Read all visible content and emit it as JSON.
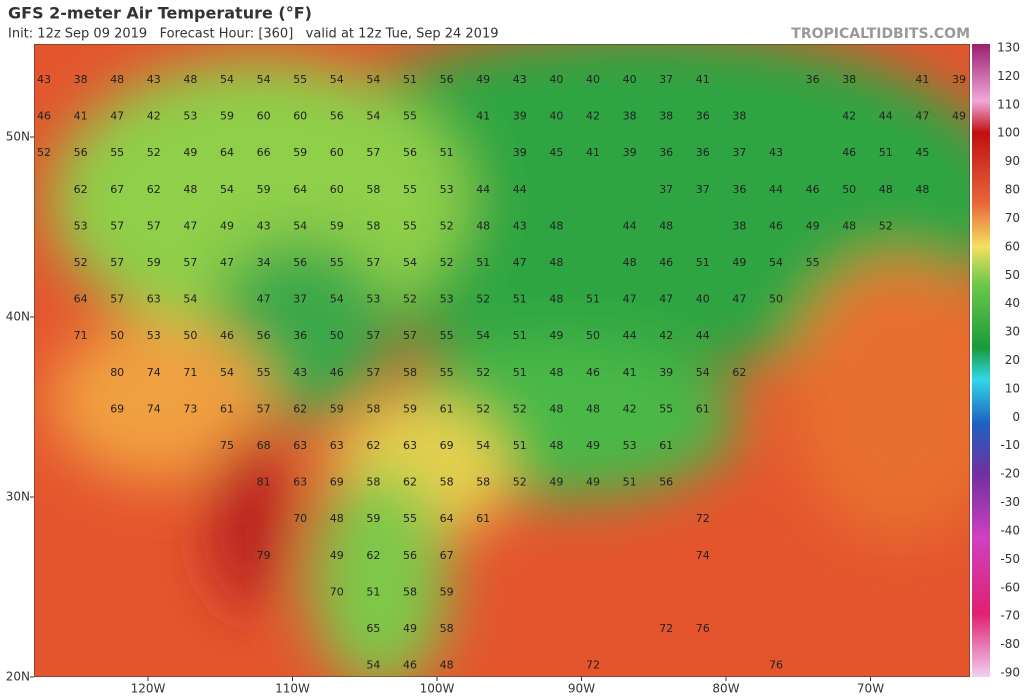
{
  "header": {
    "title": "GFS 2-meter Air Temperature (°F)",
    "subtitle": "Init: 12z Sep 09 2019   Forecast Hour: [360]   valid at 12z Tue, Sep 24 2019",
    "site": "TROPICALTIDBITS.COM"
  },
  "lat_labels": [
    "50N",
    "40N",
    "30N",
    "20N"
  ],
  "lon_labels": [
    "120W",
    "110W",
    "100W",
    "90W",
    "80W",
    "70W"
  ],
  "legend": {
    "labels": [
      130,
      120,
      110,
      100,
      90,
      80,
      70,
      60,
      50,
      40,
      30,
      20,
      10,
      0,
      -10,
      -20,
      -30,
      -40,
      -50,
      -60,
      -70,
      -80,
      -90
    ]
  },
  "grid": {
    "rows": [
      [
        43,
        38,
        48,
        43,
        48,
        54,
        54,
        55,
        54,
        54,
        51,
        56,
        49,
        43,
        40,
        40,
        40,
        37,
        41,
        null,
        null,
        36,
        38,
        null,
        41,
        39
      ],
      [
        46,
        41,
        47,
        42,
        53,
        59,
        60,
        60,
        56,
        54,
        55,
        null,
        41,
        39,
        40,
        42,
        38,
        38,
        36,
        38,
        null,
        null,
        42,
        44,
        47,
        49
      ],
      [
        52,
        56,
        55,
        52,
        49,
        64,
        66,
        59,
        60,
        57,
        56,
        51,
        null,
        39,
        45,
        41,
        39,
        36,
        36,
        37,
        43,
        null,
        46,
        51,
        45
      ],
      [
        null,
        62,
        67,
        62,
        48,
        54,
        59,
        64,
        60,
        58,
        55,
        53,
        44,
        44,
        null,
        null,
        null,
        37,
        37,
        36,
        44,
        46,
        50,
        48,
        48
      ],
      [
        null,
        53,
        57,
        57,
        47,
        49,
        43,
        54,
        59,
        58,
        55,
        52,
        48,
        43,
        48,
        null,
        44,
        48,
        null,
        38,
        46,
        49,
        48,
        52
      ],
      [
        null,
        52,
        57,
        59,
        57,
        47,
        34,
        56,
        55,
        57,
        54,
        52,
        51,
        47,
        48,
        null,
        48,
        46,
        51,
        49,
        54,
        55
      ],
      [
        null,
        64,
        57,
        63,
        54,
        null,
        47,
        37,
        54,
        53,
        52,
        53,
        52,
        51,
        48,
        51,
        47,
        47,
        40,
        47,
        50
      ],
      [
        null,
        71,
        50,
        53,
        50,
        46,
        56,
        36,
        50,
        57,
        57,
        55,
        54,
        51,
        49,
        50,
        44,
        42,
        44
      ],
      [
        null,
        null,
        80,
        74,
        71,
        54,
        55,
        43,
        46,
        57,
        58,
        55,
        52,
        51,
        48,
        46,
        41,
        39,
        54,
        62
      ],
      [
        null,
        null,
        69,
        74,
        73,
        61,
        57,
        62,
        59,
        58,
        59,
        61,
        52,
        52,
        48,
        48,
        42,
        55,
        61
      ],
      [
        null,
        null,
        null,
        null,
        null,
        75,
        68,
        63,
        63,
        62,
        63,
        69,
        54,
        51,
        48,
        49,
        53,
        61
      ],
      [
        null,
        null,
        null,
        null,
        null,
        null,
        81,
        63,
        69,
        58,
        62,
        58,
        58,
        52,
        49,
        49,
        51,
        56
      ],
      [
        null,
        null,
        null,
        null,
        null,
        null,
        null,
        70,
        48,
        59,
        55,
        64,
        61,
        null,
        null,
        null,
        null,
        null,
        72
      ],
      [
        null,
        null,
        null,
        null,
        null,
        null,
        79,
        null,
        49,
        62,
        56,
        67,
        null,
        null,
        null,
        null,
        null,
        null,
        74
      ],
      [
        null,
        null,
        null,
        null,
        null,
        null,
        null,
        null,
        70,
        51,
        58,
        59
      ],
      [
        null,
        null,
        null,
        null,
        null,
        null,
        null,
        null,
        null,
        65,
        49,
        58,
        null,
        null,
        null,
        null,
        null,
        72,
        76
      ],
      [
        null,
        null,
        null,
        null,
        null,
        null,
        null,
        null,
        null,
        54,
        46,
        48,
        null,
        null,
        null,
        72,
        null,
        null,
        null,
        null,
        76
      ]
    ]
  }
}
